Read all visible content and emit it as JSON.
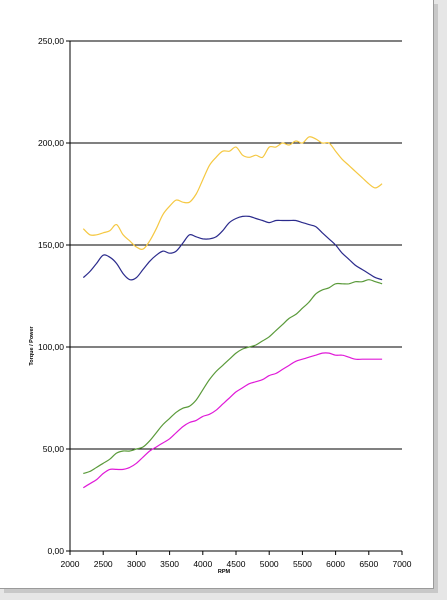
{
  "chart_data": {
    "type": "line",
    "title": "",
    "xlabel": "RPM",
    "ylabel": "Torque / Power",
    "xlim": [
      2000,
      7000
    ],
    "ylim": [
      0,
      250
    ],
    "x_ticks": [
      2000,
      2500,
      3000,
      3500,
      4000,
      4500,
      5000,
      5500,
      6000,
      6500,
      7000
    ],
    "x_tick_labels": [
      "2000",
      "2500",
      "3000",
      "3500",
      "4000",
      "4500",
      "5000",
      "5500",
      "6000",
      "6500",
      "7000"
    ],
    "y_ticks": [
      0,
      50,
      100,
      150,
      200,
      250
    ],
    "y_tick_labels": [
      "0,00",
      "50,00",
      "100,00",
      "150,00",
      "200,00",
      "250,00"
    ],
    "grid": "horizontal",
    "legend": "none",
    "series": [
      {
        "color": "#f5c842",
        "x": [
          2200,
          2300,
          2400,
          2500,
          2600,
          2700,
          2800,
          2900,
          3000,
          3100,
          3200,
          3300,
          3400,
          3500,
          3600,
          3700,
          3800,
          3900,
          4000,
          4100,
          4200,
          4300,
          4400,
          4500,
          4600,
          4700,
          4800,
          4900,
          5000,
          5100,
          5200,
          5300,
          5400,
          5500,
          5600,
          5700,
          5800,
          5900,
          6000,
          6100,
          6200,
          6300,
          6400,
          6500,
          6600,
          6700
        ],
        "values": [
          158,
          155,
          155,
          156,
          157,
          160,
          155,
          152,
          149,
          148,
          152,
          158,
          165,
          169,
          172,
          171,
          171,
          175,
          182,
          189,
          193,
          196,
          196,
          198,
          194,
          193,
          194,
          193,
          198,
          198,
          200,
          199,
          201,
          200,
          203,
          202,
          200,
          200,
          196,
          192,
          189,
          186,
          183,
          180,
          178,
          180
        ]
      },
      {
        "color": "#2b2b8c",
        "x": [
          2200,
          2300,
          2400,
          2500,
          2600,
          2700,
          2800,
          2900,
          3000,
          3100,
          3200,
          3300,
          3400,
          3500,
          3600,
          3700,
          3800,
          3900,
          4000,
          4100,
          4200,
          4300,
          4400,
          4500,
          4600,
          4700,
          4800,
          4900,
          5000,
          5100,
          5200,
          5300,
          5400,
          5500,
          5600,
          5700,
          5800,
          5900,
          6000,
          6100,
          6200,
          6300,
          6400,
          6500,
          6600,
          6700
        ],
        "values": [
          134,
          137,
          141,
          145,
          144,
          141,
          136,
          133,
          134,
          138,
          142,
          145,
          147,
          146,
          147,
          151,
          155,
          154,
          153,
          153,
          154,
          157,
          161,
          163,
          164,
          164,
          163,
          162,
          161,
          162,
          162,
          162,
          162,
          161,
          160,
          159,
          156,
          153,
          150,
          146,
          143,
          140,
          138,
          136,
          134,
          133
        ]
      },
      {
        "color": "#5a9a3a",
        "x": [
          2200,
          2300,
          2400,
          2500,
          2600,
          2700,
          2800,
          2900,
          3000,
          3100,
          3200,
          3300,
          3400,
          3500,
          3600,
          3700,
          3800,
          3900,
          4000,
          4100,
          4200,
          4300,
          4400,
          4500,
          4600,
          4700,
          4800,
          4900,
          5000,
          5100,
          5200,
          5300,
          5400,
          5500,
          5600,
          5700,
          5800,
          5900,
          6000,
          6100,
          6200,
          6300,
          6400,
          6500,
          6600,
          6700
        ],
        "values": [
          38,
          39,
          41,
          43,
          45,
          48,
          49,
          49,
          50,
          51,
          54,
          58,
          62,
          65,
          68,
          70,
          71,
          74,
          79,
          84,
          88,
          91,
          94,
          97,
          99,
          100,
          101,
          103,
          105,
          108,
          111,
          114,
          116,
          119,
          122,
          126,
          128,
          129,
          131,
          131,
          131,
          132,
          132,
          133,
          132,
          131
        ]
      },
      {
        "color": "#e01ad8",
        "x": [
          2200,
          2300,
          2400,
          2500,
          2600,
          2700,
          2800,
          2900,
          3000,
          3100,
          3200,
          3300,
          3400,
          3500,
          3600,
          3700,
          3800,
          3900,
          4000,
          4100,
          4200,
          4300,
          4400,
          4500,
          4600,
          4700,
          4800,
          4900,
          5000,
          5100,
          5200,
          5300,
          5400,
          5500,
          5600,
          5700,
          5800,
          5900,
          6000,
          6100,
          6200,
          6300,
          6400,
          6500,
          6600,
          6700
        ],
        "values": [
          31,
          33,
          35,
          38,
          40,
          40,
          40,
          41,
          43,
          46,
          49,
          51,
          53,
          55,
          58,
          61,
          63,
          64,
          66,
          67,
          69,
          72,
          75,
          78,
          80,
          82,
          83,
          84,
          86,
          87,
          89,
          91,
          93,
          94,
          95,
          96,
          97,
          97,
          96,
          96,
          95,
          94,
          94,
          94,
          94,
          94
        ]
      }
    ]
  }
}
